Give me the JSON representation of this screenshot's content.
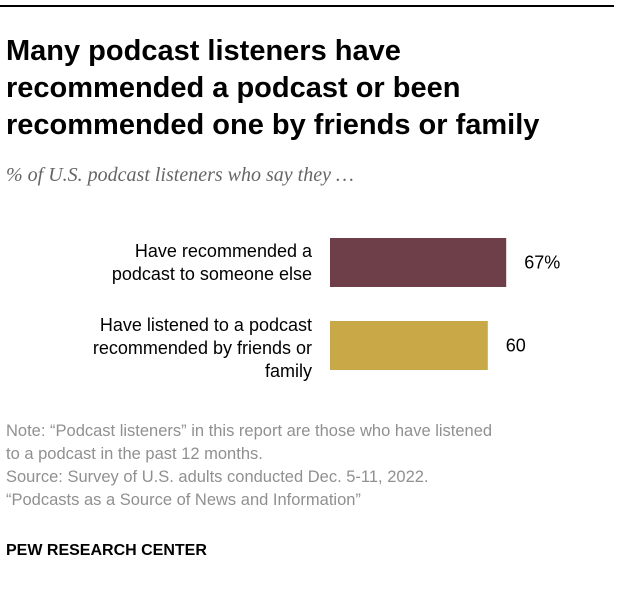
{
  "title_lines": [
    "Many podcast listeners have",
    "recommended a podcast or been",
    "recommended one by friends or family"
  ],
  "subtitle": "% of U.S. podcast listeners who say they …",
  "chart_data": {
    "type": "bar",
    "orientation": "horizontal",
    "categories": [
      [
        "Have recommended a",
        "podcast to someone else"
      ],
      [
        "Have listened to a podcast",
        "recommended by friends or",
        "family"
      ]
    ],
    "values": [
      67,
      60
    ],
    "value_labels": [
      "67%",
      "60"
    ],
    "colors": [
      "#6e3f48",
      "#c9a847"
    ],
    "xlim": [
      0,
      100
    ],
    "grid": false,
    "legend": "none"
  },
  "notes": {
    "note_lines": [
      "Note: “Podcast listeners” in this report are those who have listened",
      "to a podcast in the past 12 months."
    ],
    "source_lines": [
      "Source: Survey of U.S. adults conducted Dec. 5-11, 2022.",
      "“Podcasts as a Source of News and Information”"
    ]
  },
  "org": "PEW RESEARCH CENTER"
}
